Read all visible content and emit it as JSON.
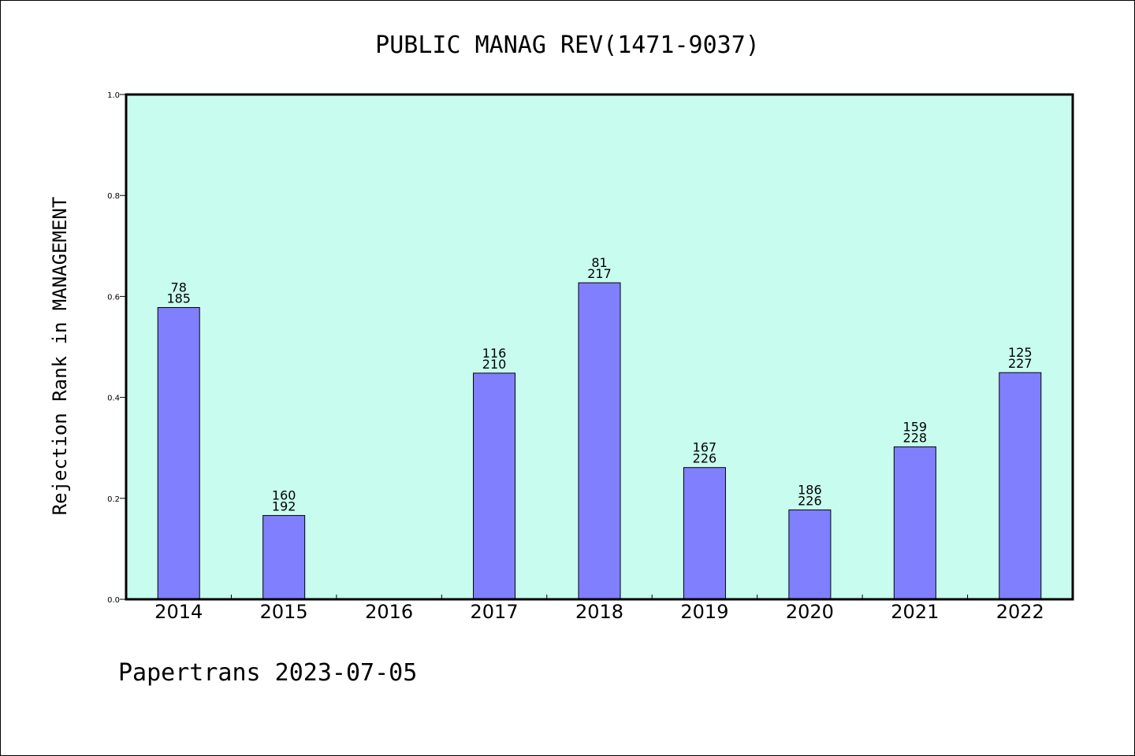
{
  "chart_data": {
    "type": "bar",
    "title": "PUBLIC MANAG REV(1471-9037)",
    "ylabel": "Rejection Rank in MANAGEMENT",
    "xlabel": "",
    "ylim": [
      0,
      1.0
    ],
    "yticks": [
      "0.0",
      "0.2",
      "0.4",
      "0.6",
      "0.8",
      "1.0"
    ],
    "categories": [
      "2014",
      "2015",
      "2016",
      "2017",
      "2018",
      "2019",
      "2020",
      "2021",
      "2022"
    ],
    "values": [
      0.578,
      0.166,
      null,
      0.448,
      0.627,
      0.261,
      0.177,
      0.302,
      0.449
    ],
    "labels_top": [
      "78",
      "160",
      "",
      "116",
      "81",
      "167",
      "186",
      "159",
      "125"
    ],
    "labels_bottom": [
      "185",
      "192",
      "",
      "210",
      "217",
      "226",
      "226",
      "228",
      "227"
    ],
    "grid": false,
    "legend": "none",
    "colors": {
      "plot_bg": "#c8fcee",
      "bar": "#8080ff",
      "bar_edge": "#000000"
    }
  },
  "footer": {
    "text": "Papertrans 2023-07-05"
  }
}
